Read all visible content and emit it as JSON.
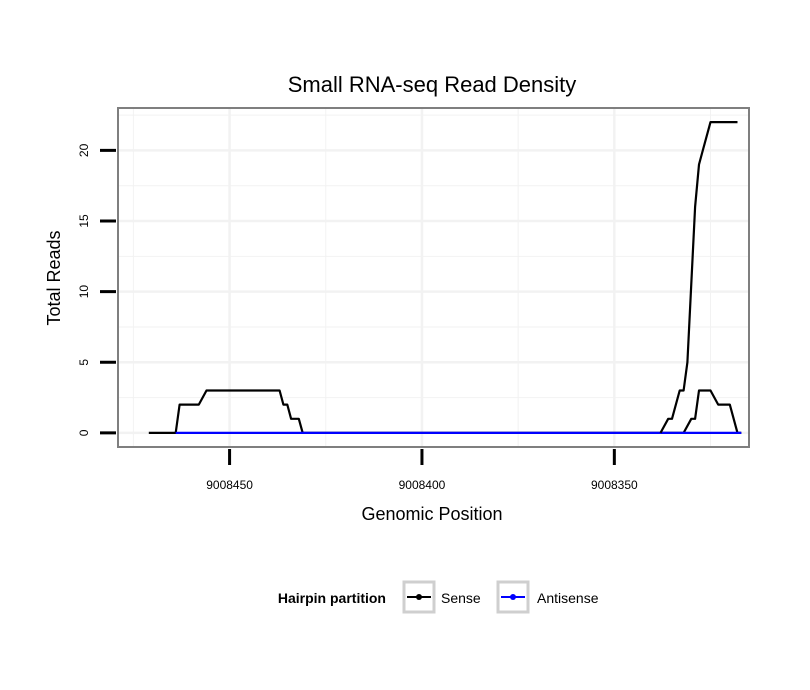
{
  "chart_data": {
    "type": "line",
    "title": "Small RNA-seq Read Density",
    "xlabel": "Genomic Position",
    "ylabel": "Total Reads",
    "xlim": [
      9008479,
      9008315
    ],
    "ylim": [
      -1,
      23
    ],
    "x_reversed": true,
    "x_ticks": [
      9008450,
      9008400,
      9008350
    ],
    "x_tick_labels": [
      "9008450",
      "9008400",
      "9008350"
    ],
    "y_ticks": [
      0,
      5,
      10,
      15,
      20
    ],
    "y_tick_labels": [
      "0",
      "5",
      "10",
      "15",
      "20"
    ],
    "grid": true,
    "legend": {
      "title": "Hairpin partition",
      "position": "bottom",
      "entries": [
        "Sense",
        "Antisense"
      ]
    },
    "colors": {
      "Sense": "#000000",
      "Antisense": "#0000ff",
      "panel_border": "#7f7f7f",
      "grid": "#f2f2f2"
    },
    "series": [
      {
        "name": "Sense",
        "x": [
          9008471,
          9008464,
          9008463,
          9008459,
          9008458,
          9008456,
          9008437,
          9008436,
          9008435,
          9008434,
          9008432,
          9008431,
          9008378,
          9008366,
          9008333,
          9008332,
          9008330,
          9008329,
          9008328,
          9008326,
          9008325,
          9008323,
          9008322,
          9008321,
          9008320,
          9008318,
          9008317
        ],
        "y": [
          0,
          0,
          2,
          2,
          2,
          3,
          3,
          2,
          2,
          1,
          1,
          0,
          0,
          0,
          0,
          0,
          1,
          1,
          3,
          3,
          3,
          2,
          2,
          2,
          2,
          0,
          0
        ]
      },
      {
        "name": "Antisense",
        "x": [
          9008464,
          9008317
        ],
        "y": [
          0,
          0
        ]
      }
    ],
    "peak_series": {
      "name": "Sense",
      "x": [
        9008338,
        9008336,
        9008335,
        9008333,
        9008332,
        9008331,
        9008329,
        9008328,
        9008327,
        9008325,
        9008323,
        9008321,
        9008320,
        9008318
      ],
      "y": [
        0,
        1,
        1,
        3,
        3,
        5,
        16,
        19,
        20,
        22,
        22,
        22,
        22,
        22
      ]
    }
  }
}
